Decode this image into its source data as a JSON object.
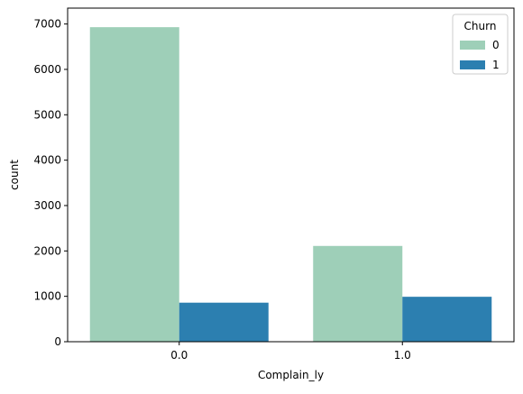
{
  "chart_data": {
    "type": "bar",
    "categories": [
      "0.0",
      "1.0"
    ],
    "series": [
      {
        "name": "0",
        "values": [
          6930,
          2110
        ],
        "color": "#9ecfb8"
      },
      {
        "name": "1",
        "values": [
          860,
          990
        ],
        "color": "#2c7fb0"
      }
    ],
    "xlabel": "Complain_ly",
    "ylabel": "count",
    "ylim": [
      0,
      7350
    ],
    "yticks": [
      0,
      1000,
      2000,
      3000,
      4000,
      5000,
      6000,
      7000
    ],
    "legend": {
      "title": "Churn",
      "position": "top-right"
    },
    "grid": false
  }
}
